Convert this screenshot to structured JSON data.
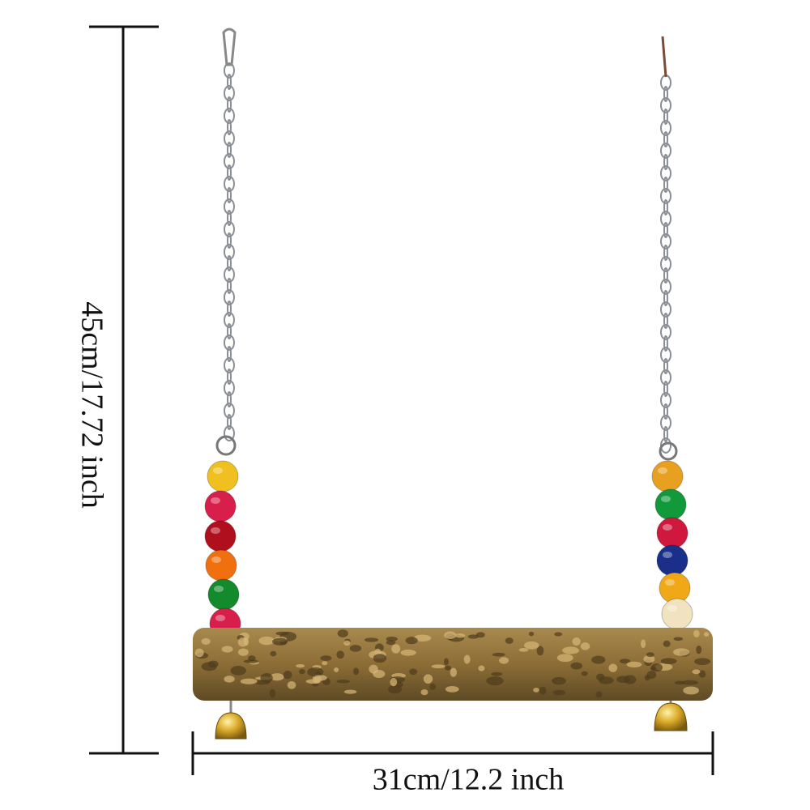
{
  "dimensions": {
    "height": "45cm/17.72 inch",
    "width": "31cm/12.2 inch"
  }
}
